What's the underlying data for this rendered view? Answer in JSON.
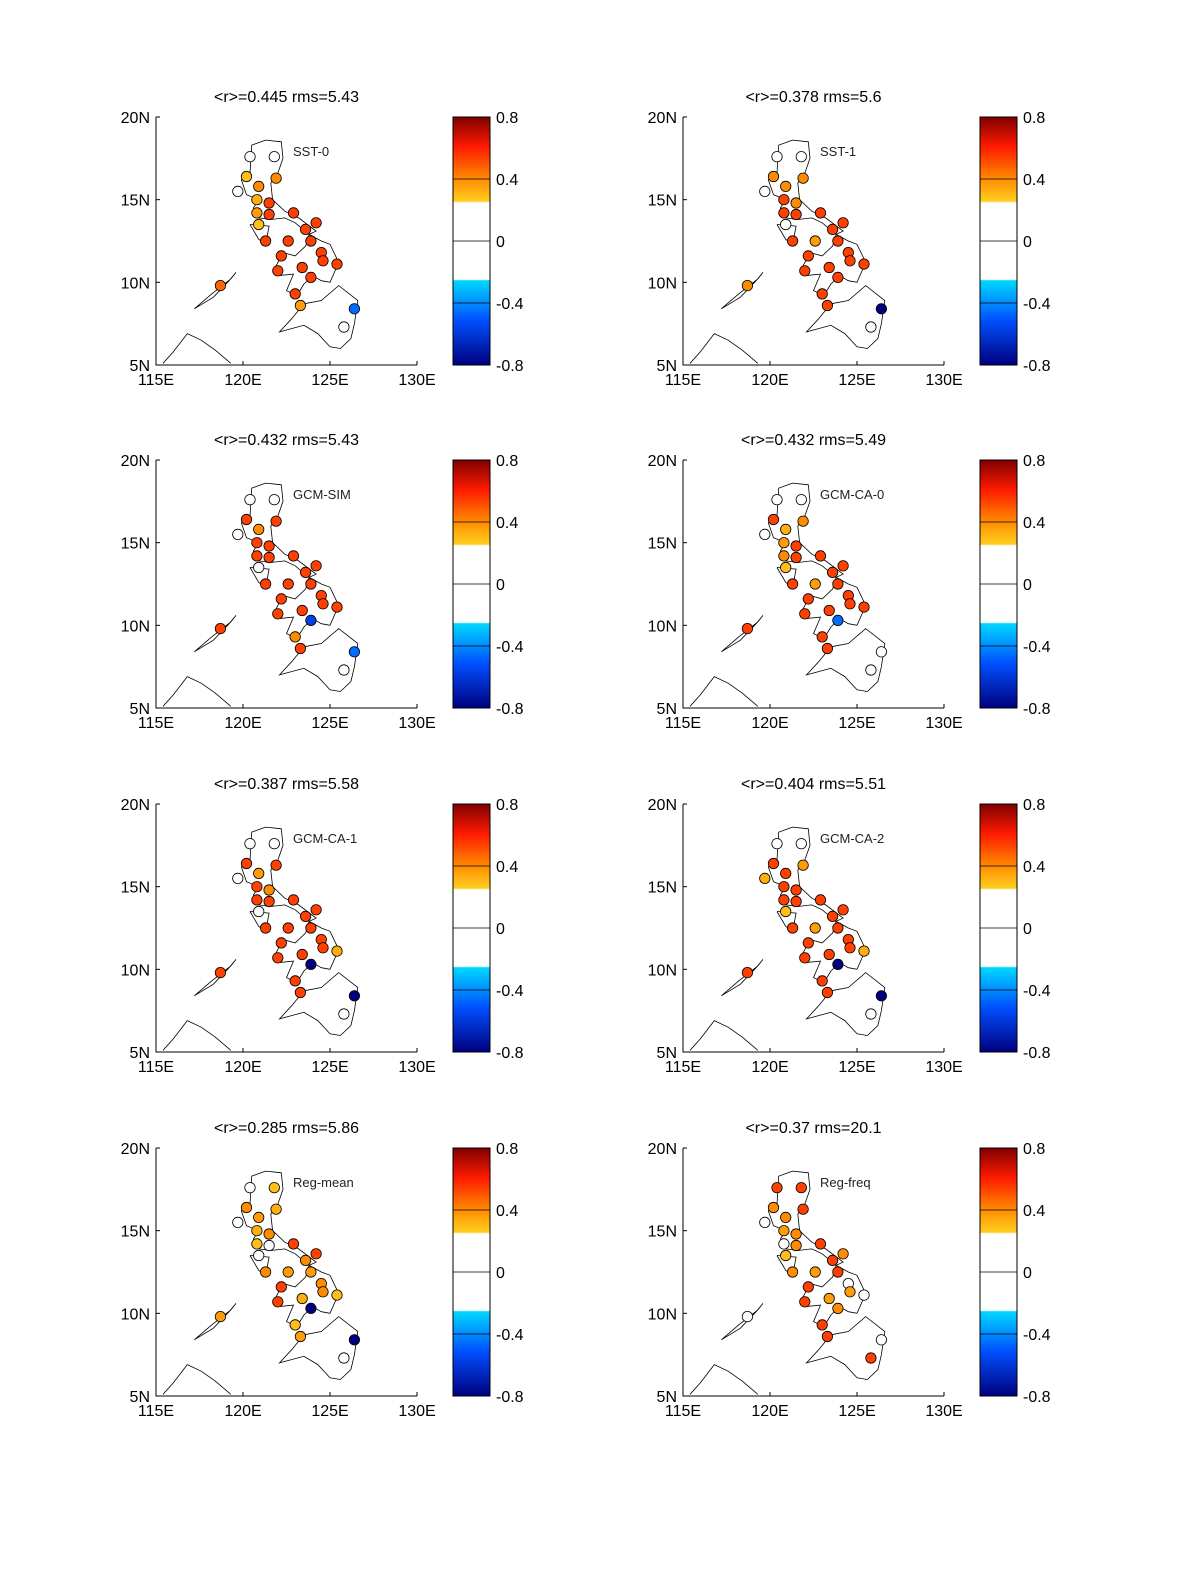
{
  "figure": {
    "colorbar": {
      "tick_labels": [
        "0.8",
        "0.4",
        "0",
        "-0.4",
        "-0.8"
      ],
      "range": [
        -0.8,
        0.8
      ],
      "colors": {
        "dark_red": "#7f0000",
        "red": "#ff1a00",
        "orange": "#ff8c00",
        "yellow": "#ffd020",
        "white": "#ffffff",
        "cyan": "#00d8ff",
        "blue": "#0050ff",
        "dark_blue": "#00007f"
      }
    },
    "axes": {
      "x_tick_labels": [
        "115E",
        "120E",
        "125E",
        "130E"
      ],
      "y_tick_labels": [
        "20N",
        "15N",
        "10N",
        "5N"
      ],
      "xlim": [
        115,
        130
      ],
      "ylim": [
        5,
        20
      ]
    },
    "panels": [
      {
        "title": "<r>=0.445 rms=5.43",
        "label": "SST-0"
      },
      {
        "title": "<r>=0.378 rms=5.6",
        "label": "SST-1"
      },
      {
        "title": "<r>=0.432 rms=5.43",
        "label": "GCM-SIM"
      },
      {
        "title": "<r>=0.432 rms=5.49",
        "label": "GCM-CA-0"
      },
      {
        "title": "<r>=0.387 rms=5.58",
        "label": "GCM-CA-1"
      },
      {
        "title": "<r>=0.404 rms=5.51",
        "label": "GCM-CA-2"
      },
      {
        "title": "<r>=0.285 rms=5.86",
        "label": "Reg-mean"
      },
      {
        "title": "<r>=0.37 rms=20.1",
        "label": "Reg-freq"
      }
    ]
  },
  "chart_data": {
    "type": "scatter",
    "description_units": "station correlation r at lon(E)/lat(N)",
    "stations": [
      [
        120.4,
        17.6
      ],
      [
        121.8,
        17.6
      ],
      [
        120.2,
        16.4
      ],
      [
        121.9,
        16.3
      ],
      [
        119.7,
        15.5
      ],
      [
        120.9,
        15.8
      ],
      [
        120.8,
        15.0
      ],
      [
        121.5,
        14.8
      ],
      [
        120.8,
        14.2
      ],
      [
        121.5,
        14.1
      ],
      [
        120.9,
        13.5
      ],
      [
        122.9,
        14.2
      ],
      [
        123.6,
        13.2
      ],
      [
        124.2,
        13.6
      ],
      [
        121.3,
        12.5
      ],
      [
        122.6,
        12.5
      ],
      [
        123.9,
        12.5
      ],
      [
        124.5,
        11.8
      ],
      [
        124.6,
        11.3
      ],
      [
        125.4,
        11.1
      ],
      [
        122.2,
        11.6
      ],
      [
        122.0,
        10.7
      ],
      [
        123.4,
        10.9
      ],
      [
        123.9,
        10.3
      ],
      [
        123.0,
        9.3
      ],
      [
        123.3,
        8.6
      ],
      [
        126.4,
        8.4
      ],
      [
        125.8,
        7.3
      ],
      [
        118.7,
        9.8
      ]
    ],
    "panels": [
      {
        "name": "SST-0",
        "r": [
          0.0,
          0.0,
          0.35,
          0.5,
          0.0,
          0.5,
          0.4,
          0.6,
          0.45,
          0.6,
          0.35,
          0.6,
          0.6,
          0.6,
          0.6,
          0.6,
          0.6,
          0.6,
          0.6,
          0.6,
          0.6,
          0.6,
          0.6,
          0.6,
          0.6,
          0.45,
          -0.5,
          0.0,
          0.55
        ]
      },
      {
        "name": "SST-1",
        "r": [
          0.0,
          0.0,
          0.5,
          0.5,
          0.0,
          0.5,
          0.6,
          0.5,
          0.6,
          0.6,
          0.0,
          0.6,
          0.6,
          0.6,
          0.6,
          0.45,
          0.6,
          0.6,
          0.6,
          0.6,
          0.6,
          0.6,
          0.6,
          0.6,
          0.6,
          0.6,
          -0.8,
          0.0,
          0.5
        ]
      },
      {
        "name": "GCM-SIM",
        "r": [
          0.0,
          0.0,
          0.6,
          0.6,
          0.0,
          0.5,
          0.6,
          0.6,
          0.6,
          0.6,
          0.3,
          0.6,
          0.6,
          0.6,
          0.6,
          0.6,
          0.6,
          0.6,
          0.6,
          0.6,
          0.6,
          0.6,
          0.6,
          -0.6,
          0.5,
          0.6,
          -0.5,
          0.0,
          0.6
        ]
      },
      {
        "name": "GCM-CA-0",
        "r": [
          0.0,
          0.0,
          0.6,
          0.5,
          0.0,
          0.4,
          0.45,
          0.6,
          0.5,
          0.6,
          0.35,
          0.6,
          0.6,
          0.6,
          0.6,
          0.45,
          0.6,
          0.6,
          0.6,
          0.6,
          0.6,
          0.6,
          0.6,
          -0.5,
          0.6,
          0.6,
          0.0,
          0.0,
          0.6
        ]
      },
      {
        "name": "GCM-CA-1",
        "r": [
          0.0,
          0.0,
          0.6,
          0.6,
          0.0,
          0.45,
          0.6,
          0.5,
          0.6,
          0.6,
          0.3,
          0.6,
          0.6,
          0.6,
          0.6,
          0.6,
          0.6,
          0.6,
          0.6,
          0.4,
          0.6,
          0.6,
          0.6,
          -0.8,
          0.6,
          0.6,
          -0.8,
          0.0,
          0.6
        ]
      },
      {
        "name": "GCM-CA-2",
        "r": [
          0.0,
          0.0,
          0.6,
          0.45,
          0.4,
          0.6,
          0.6,
          0.6,
          0.6,
          0.6,
          0.35,
          0.6,
          0.6,
          0.6,
          0.6,
          0.45,
          0.6,
          0.6,
          0.6,
          0.4,
          0.6,
          0.6,
          0.6,
          -0.8,
          0.6,
          0.6,
          -0.8,
          0.0,
          0.6
        ]
      },
      {
        "name": "Reg-mean",
        "r": [
          0.0,
          0.35,
          0.5,
          0.4,
          0.0,
          0.45,
          0.4,
          0.5,
          0.35,
          0.0,
          0.0,
          0.6,
          0.5,
          0.6,
          0.5,
          0.45,
          0.45,
          0.5,
          0.5,
          0.35,
          0.6,
          0.6,
          0.4,
          -0.8,
          0.35,
          0.45,
          -0.8,
          0.0,
          0.45
        ]
      },
      {
        "name": "Reg-freq",
        "r": [
          0.6,
          0.6,
          0.5,
          0.6,
          0.0,
          0.5,
          0.45,
          0.5,
          0.0,
          0.5,
          0.35,
          0.6,
          0.6,
          0.5,
          0.5,
          0.45,
          0.6,
          0.3,
          0.45,
          0.0,
          0.6,
          0.6,
          0.45,
          0.5,
          0.6,
          0.6,
          0.0,
          0.6,
          0.0
        ]
      }
    ]
  }
}
